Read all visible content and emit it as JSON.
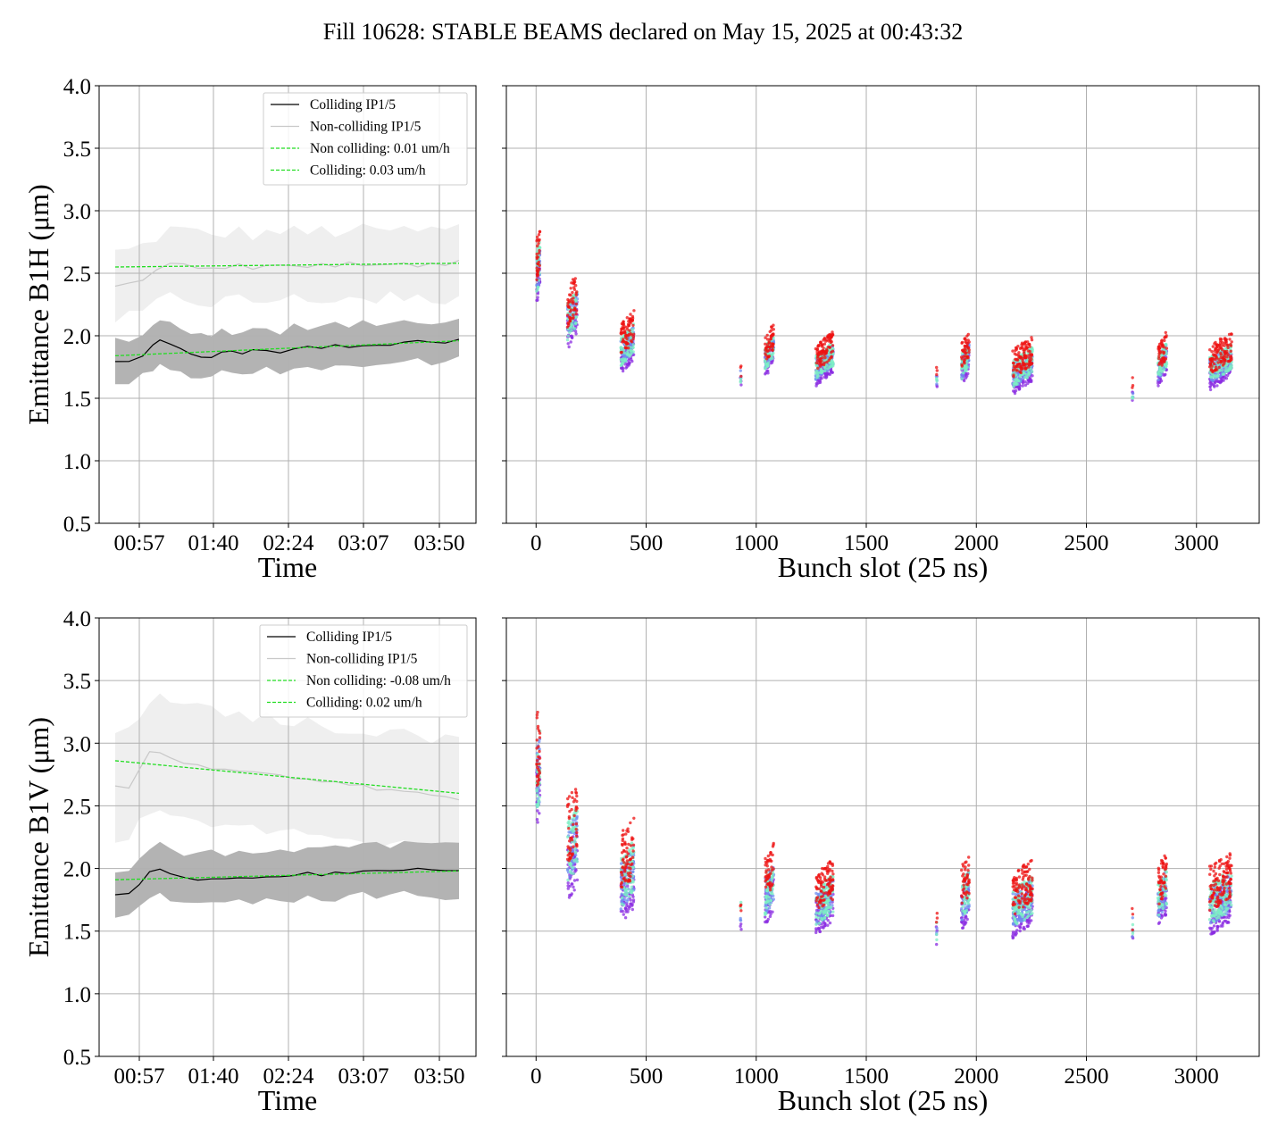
{
  "chart_data": {
    "type": "scatter",
    "title": "Fill 10628: STABLE BEAMS declared on May 15, 2025 at 00:43:32",
    "time_ticks": [
      "00:57",
      "01:40",
      "02:24",
      "03:07",
      "03:50"
    ],
    "slot_ticks": [
      0,
      500,
      1000,
      1500,
      2000,
      2500,
      3000
    ],
    "colors": {
      "colliding": "#000000",
      "colliding_band": "#b3b3b3",
      "noncolliding": "#c8c8c8",
      "noncolliding_band": "#efefef",
      "fit": "#22dd22",
      "grid": "#b0b0b0",
      "scatter_early": "#8a2be2",
      "scatter_mid1": "#6f8ff0",
      "scatter_mid2": "#7cefc4",
      "scatter_late": "#ee1111"
    },
    "panels": [
      {
        "plane": "B1H",
        "ylabel": "Emittance B1H (μm)",
        "ylim": [
          0.5,
          4.0
        ],
        "yticks": [
          "0.5",
          "1.0",
          "1.5",
          "2.0",
          "2.5",
          "3.0",
          "3.5",
          "4.0"
        ],
        "time_xlabel": "Time",
        "slot_xlabel": "Bunch slot (25 ns)",
        "legend": [
          "Colliding IP1/5",
          "Non-colliding IP1/5",
          "Non colliding: 0.01 um/h",
          "Colliding: 0.03 um/h"
        ],
        "fits": {
          "noncolliding": [
            2.55,
            2.58
          ],
          "colliding": [
            1.84,
            1.96
          ]
        },
        "colliding_series": [
          [
            0.0,
            1.8
          ],
          [
            0.04,
            1.79
          ],
          [
            0.08,
            1.84
          ],
          [
            0.11,
            1.92
          ],
          [
            0.13,
            1.97
          ],
          [
            0.16,
            1.93
          ],
          [
            0.19,
            1.9
          ],
          [
            0.22,
            1.85
          ],
          [
            0.25,
            1.83
          ],
          [
            0.28,
            1.82
          ],
          [
            0.31,
            1.88
          ],
          [
            0.34,
            1.87
          ],
          [
            0.37,
            1.86
          ],
          [
            0.4,
            1.88
          ],
          [
            0.44,
            1.89
          ],
          [
            0.48,
            1.86
          ],
          [
            0.52,
            1.9
          ],
          [
            0.56,
            1.91
          ],
          [
            0.6,
            1.9
          ],
          [
            0.64,
            1.92
          ],
          [
            0.68,
            1.91
          ],
          [
            0.72,
            1.92
          ],
          [
            0.76,
            1.93
          ],
          [
            0.8,
            1.92
          ],
          [
            0.84,
            1.95
          ],
          [
            0.88,
            1.96
          ],
          [
            0.92,
            1.95
          ],
          [
            0.96,
            1.94
          ],
          [
            1.0,
            1.98
          ]
        ],
        "colliding_band_halfwidth": 0.17,
        "noncolliding_series": [
          [
            0.0,
            2.4
          ],
          [
            0.04,
            2.41
          ],
          [
            0.08,
            2.45
          ],
          [
            0.12,
            2.52
          ],
          [
            0.16,
            2.58
          ],
          [
            0.2,
            2.57
          ],
          [
            0.24,
            2.55
          ],
          [
            0.28,
            2.53
          ],
          [
            0.32,
            2.55
          ],
          [
            0.36,
            2.56
          ],
          [
            0.4,
            2.54
          ],
          [
            0.44,
            2.55
          ],
          [
            0.48,
            2.57
          ],
          [
            0.52,
            2.56
          ],
          [
            0.56,
            2.55
          ],
          [
            0.6,
            2.57
          ],
          [
            0.64,
            2.56
          ],
          [
            0.68,
            2.58
          ],
          [
            0.72,
            2.57
          ],
          [
            0.76,
            2.56
          ],
          [
            0.8,
            2.58
          ],
          [
            0.84,
            2.57
          ],
          [
            0.88,
            2.56
          ],
          [
            0.92,
            2.58
          ],
          [
            0.96,
            2.57
          ],
          [
            1.0,
            2.6
          ]
        ],
        "noncolliding_band_halfwidth": 0.27,
        "bunch_trains": [
          {
            "slot": 10,
            "width": 15,
            "lo": 2.3,
            "hi": 2.85
          },
          {
            "slot": 165,
            "width": 45,
            "lo": 1.95,
            "hi": 2.45
          },
          {
            "slot": 415,
            "width": 60,
            "lo": 1.75,
            "hi": 2.15
          },
          {
            "slot": 930,
            "width": 4,
            "lo": 1.6,
            "hi": 1.78
          },
          {
            "slot": 1060,
            "width": 40,
            "lo": 1.72,
            "hi": 2.05
          },
          {
            "slot": 1310,
            "width": 80,
            "lo": 1.65,
            "hi": 1.98
          },
          {
            "slot": 1820,
            "width": 4,
            "lo": 1.58,
            "hi": 1.76
          },
          {
            "slot": 1950,
            "width": 35,
            "lo": 1.65,
            "hi": 2.0
          },
          {
            "slot": 2210,
            "width": 90,
            "lo": 1.58,
            "hi": 1.95
          },
          {
            "slot": 2710,
            "width": 4,
            "lo": 1.46,
            "hi": 1.68
          },
          {
            "slot": 2845,
            "width": 40,
            "lo": 1.65,
            "hi": 1.98
          },
          {
            "slot": 3110,
            "width": 100,
            "lo": 1.62,
            "hi": 1.98
          }
        ]
      },
      {
        "plane": "B1V",
        "ylabel": "Emittance B1V (μm)",
        "ylim": [
          0.5,
          4.0
        ],
        "yticks": [
          "0.5",
          "1.0",
          "1.5",
          "2.0",
          "2.5",
          "3.0",
          "3.5",
          "4.0"
        ],
        "time_xlabel": "Time",
        "slot_xlabel": "Bunch slot (25 ns)",
        "legend": [
          "Colliding IP1/5",
          "Non-colliding IP1/5",
          "Non colliding: -0.08 um/h",
          "Colliding: 0.02 um/h"
        ],
        "fits": {
          "noncolliding": [
            2.86,
            2.6
          ],
          "colliding": [
            1.91,
            1.98
          ]
        },
        "colliding_series": [
          [
            0.0,
            1.8
          ],
          [
            0.04,
            1.8
          ],
          [
            0.07,
            1.88
          ],
          [
            0.1,
            1.97
          ],
          [
            0.13,
            2.0
          ],
          [
            0.16,
            1.95
          ],
          [
            0.2,
            1.93
          ],
          [
            0.24,
            1.9
          ],
          [
            0.28,
            1.92
          ],
          [
            0.32,
            1.91
          ],
          [
            0.36,
            1.93
          ],
          [
            0.4,
            1.92
          ],
          [
            0.44,
            1.94
          ],
          [
            0.48,
            1.93
          ],
          [
            0.52,
            1.95
          ],
          [
            0.56,
            1.96
          ],
          [
            0.6,
            1.95
          ],
          [
            0.64,
            1.97
          ],
          [
            0.68,
            1.96
          ],
          [
            0.72,
            1.98
          ],
          [
            0.76,
            1.99
          ],
          [
            0.8,
            1.98
          ],
          [
            0.84,
            1.99
          ],
          [
            0.88,
            2.0
          ],
          [
            0.92,
            1.99
          ],
          [
            0.96,
            1.98
          ],
          [
            1.0,
            1.99
          ]
        ],
        "colliding_band_halfwidth": 0.2,
        "noncolliding_series": [
          [
            0.0,
            2.66
          ],
          [
            0.04,
            2.64
          ],
          [
            0.07,
            2.8
          ],
          [
            0.1,
            2.92
          ],
          [
            0.13,
            2.93
          ],
          [
            0.16,
            2.88
          ],
          [
            0.2,
            2.84
          ],
          [
            0.24,
            2.82
          ],
          [
            0.28,
            2.8
          ],
          [
            0.32,
            2.79
          ],
          [
            0.36,
            2.78
          ],
          [
            0.4,
            2.77
          ],
          [
            0.44,
            2.76
          ],
          [
            0.48,
            2.74
          ],
          [
            0.52,
            2.72
          ],
          [
            0.56,
            2.71
          ],
          [
            0.6,
            2.7
          ],
          [
            0.64,
            2.68
          ],
          [
            0.68,
            2.67
          ],
          [
            0.72,
            2.66
          ],
          [
            0.76,
            2.64
          ],
          [
            0.8,
            2.63
          ],
          [
            0.84,
            2.62
          ],
          [
            0.88,
            2.6
          ],
          [
            0.92,
            2.59
          ],
          [
            0.96,
            2.57
          ],
          [
            1.0,
            2.55
          ]
        ],
        "noncolliding_band_halfwidth": 0.45,
        "bunch_trains": [
          {
            "slot": 10,
            "width": 15,
            "lo": 2.35,
            "hi": 3.28
          },
          {
            "slot": 165,
            "width": 45,
            "lo": 1.8,
            "hi": 2.65
          },
          {
            "slot": 415,
            "width": 60,
            "lo": 1.62,
            "hi": 2.35
          },
          {
            "slot": 930,
            "width": 4,
            "lo": 1.5,
            "hi": 1.82
          },
          {
            "slot": 1060,
            "width": 40,
            "lo": 1.6,
            "hi": 2.15
          },
          {
            "slot": 1310,
            "width": 80,
            "lo": 1.52,
            "hi": 2.02
          },
          {
            "slot": 1820,
            "width": 4,
            "lo": 1.38,
            "hi": 1.66
          },
          {
            "slot": 1950,
            "width": 35,
            "lo": 1.55,
            "hi": 2.08
          },
          {
            "slot": 2210,
            "width": 90,
            "lo": 1.5,
            "hi": 2.02
          },
          {
            "slot": 2710,
            "width": 4,
            "lo": 1.4,
            "hi": 1.7
          },
          {
            "slot": 2845,
            "width": 40,
            "lo": 1.58,
            "hi": 2.08
          },
          {
            "slot": 3110,
            "width": 100,
            "lo": 1.52,
            "hi": 2.08
          }
        ]
      }
    ]
  }
}
